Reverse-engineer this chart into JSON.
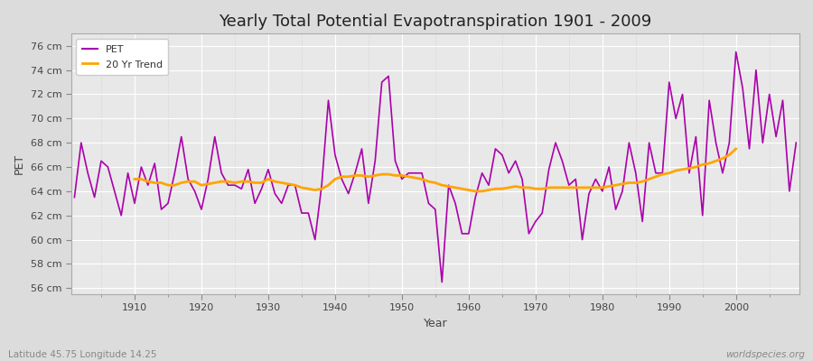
{
  "title": "Yearly Total Potential Evapotranspiration 1901 - 2009",
  "xlabel": "Year",
  "ylabel": "PET",
  "footnote_left": "Latitude 45.75 Longitude 14.25",
  "footnote_right": "worldspecies.org",
  "years": [
    1901,
    1902,
    1903,
    1904,
    1905,
    1906,
    1907,
    1908,
    1909,
    1910,
    1911,
    1912,
    1913,
    1914,
    1915,
    1916,
    1917,
    1918,
    1919,
    1920,
    1921,
    1922,
    1923,
    1924,
    1925,
    1926,
    1927,
    1928,
    1929,
    1930,
    1931,
    1932,
    1933,
    1934,
    1935,
    1936,
    1937,
    1938,
    1939,
    1940,
    1941,
    1942,
    1943,
    1944,
    1945,
    1946,
    1947,
    1948,
    1949,
    1950,
    1951,
    1952,
    1953,
    1954,
    1955,
    1956,
    1957,
    1958,
    1959,
    1960,
    1961,
    1962,
    1963,
    1964,
    1965,
    1966,
    1967,
    1968,
    1969,
    1970,
    1971,
    1972,
    1973,
    1974,
    1975,
    1976,
    1977,
    1978,
    1979,
    1980,
    1981,
    1982,
    1983,
    1984,
    1985,
    1986,
    1987,
    1988,
    1989,
    1990,
    1991,
    1992,
    1993,
    1994,
    1995,
    1996,
    1997,
    1998,
    1999,
    2000,
    2001,
    2002,
    2003,
    2004,
    2005,
    2006,
    2007,
    2008,
    2009
  ],
  "pet": [
    63.5,
    68.0,
    65.5,
    63.5,
    66.5,
    66.0,
    64.0,
    62.0,
    65.5,
    63.0,
    66.0,
    64.5,
    66.3,
    62.5,
    63.0,
    65.5,
    68.5,
    65.0,
    64.0,
    62.5,
    65.0,
    68.5,
    65.5,
    64.5,
    64.5,
    64.2,
    65.8,
    63.0,
    64.2,
    65.8,
    63.8,
    63.0,
    64.5,
    64.5,
    62.2,
    62.2,
    60.0,
    64.5,
    71.5,
    67.0,
    65.0,
    63.8,
    65.5,
    67.5,
    63.0,
    66.5,
    73.0,
    73.5,
    66.5,
    65.0,
    65.5,
    65.5,
    65.5,
    63.0,
    62.5,
    56.5,
    64.5,
    63.0,
    60.5,
    60.5,
    63.5,
    65.5,
    64.5,
    67.5,
    67.0,
    65.5,
    66.5,
    65.0,
    60.5,
    61.5,
    62.2,
    65.8,
    68.0,
    66.5,
    64.5,
    65.0,
    60.0,
    63.8,
    65.0,
    64.0,
    66.0,
    62.5,
    64.0,
    68.0,
    65.5,
    61.5,
    68.0,
    65.5,
    65.5,
    73.0,
    70.0,
    72.0,
    65.5,
    68.5,
    62.0,
    71.5,
    68.0,
    65.5,
    68.0,
    75.5,
    72.5,
    67.5,
    74.0,
    68.0,
    72.0,
    68.5,
    71.5,
    64.0,
    68.0
  ],
  "trend": [
    null,
    null,
    null,
    null,
    null,
    null,
    null,
    null,
    null,
    65.0,
    65.0,
    64.8,
    64.7,
    64.7,
    64.5,
    64.5,
    64.7,
    64.8,
    64.8,
    64.5,
    64.6,
    64.7,
    64.8,
    64.8,
    64.7,
    64.8,
    64.8,
    64.7,
    64.7,
    65.0,
    64.8,
    64.7,
    64.6,
    64.5,
    64.3,
    64.2,
    64.1,
    64.2,
    64.5,
    65.0,
    65.2,
    65.2,
    65.3,
    65.3,
    65.2,
    65.3,
    65.4,
    65.4,
    65.3,
    65.3,
    65.2,
    65.1,
    65.0,
    64.8,
    64.7,
    64.5,
    64.4,
    64.3,
    64.2,
    64.1,
    64.0,
    64.0,
    64.1,
    64.2,
    64.2,
    64.3,
    64.4,
    64.3,
    64.3,
    64.2,
    64.2,
    64.3,
    64.3,
    64.3,
    64.3,
    64.3,
    64.3,
    64.3,
    64.3,
    64.3,
    64.4,
    64.5,
    64.6,
    64.7,
    64.7,
    64.8,
    65.0,
    65.2,
    65.4,
    65.5,
    65.7,
    65.8,
    65.9,
    66.0,
    66.2,
    66.3,
    66.5,
    66.7,
    67.0,
    67.5,
    null,
    null,
    null,
    null,
    null,
    null,
    null,
    null,
    null
  ],
  "pet_color": "#AA00AA",
  "trend_color": "#FFA500",
  "fig_bg_color": "#DCDCDC",
  "plot_bg_color": "#E8E8E8",
  "grid_major_color": "#FFFFFF",
  "grid_minor_color": "#D8D8D8",
  "ylim": [
    55.5,
    77.0
  ],
  "yticks": [
    56,
    58,
    60,
    62,
    64,
    66,
    68,
    70,
    72,
    74,
    76
  ],
  "xticks": [
    1910,
    1920,
    1930,
    1940,
    1950,
    1960,
    1970,
    1980,
    1990,
    2000
  ],
  "title_fontsize": 13,
  "axis_label_fontsize": 9,
  "tick_fontsize": 8,
  "legend_fontsize": 8,
  "footnote_fontsize": 7.5
}
